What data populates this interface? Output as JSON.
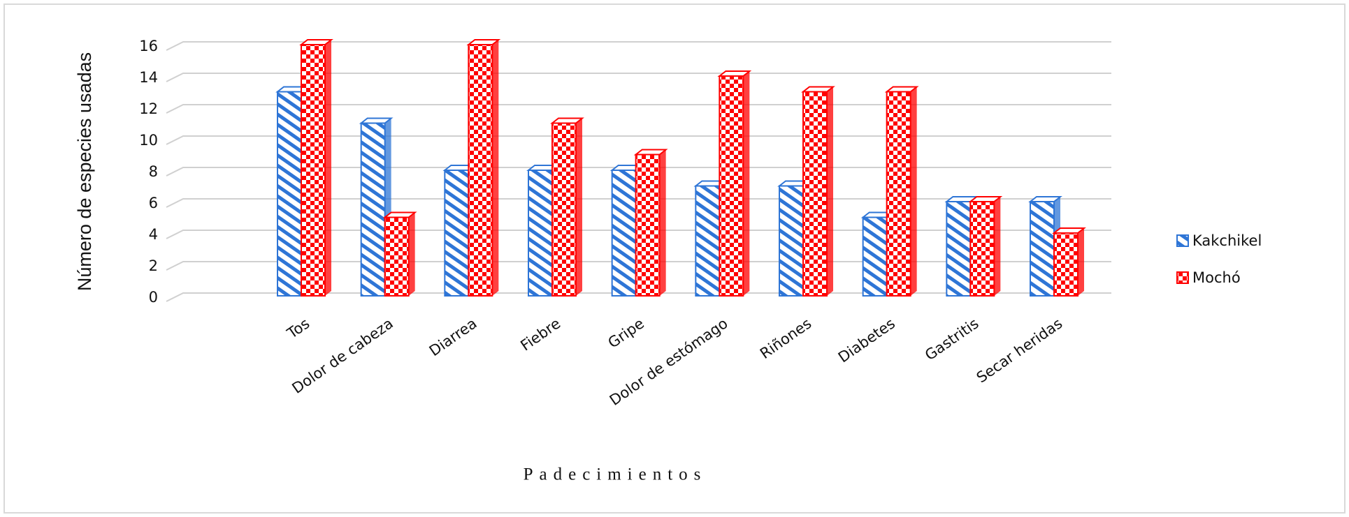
{
  "chart_data": {
    "type": "bar3d",
    "y_label": "Número de especies usadas",
    "x_label": "Padecimientos",
    "categories": [
      "Tos",
      "Dolor de cabeza",
      "Diarrea",
      "Fiebre",
      "Gripe",
      "Dolor de estómago",
      "Riñones",
      "Diabetes",
      "Gastritis",
      "Secar heridas"
    ],
    "series": [
      {
        "name": "Kakchikel",
        "color": "#2e75d6",
        "values": [
          13,
          11,
          8,
          8,
          8,
          7,
          7,
          5,
          6,
          6
        ]
      },
      {
        "name": "Mochó",
        "color": "#ff0000",
        "values": [
          16,
          5,
          16,
          11,
          9,
          14,
          13,
          13,
          6,
          4
        ]
      }
    ],
    "ylim": [
      0,
      16
    ],
    "yticks": [
      0,
      2,
      4,
      6,
      8,
      10,
      12,
      14,
      16
    ],
    "grid": true,
    "legend": "right"
  }
}
